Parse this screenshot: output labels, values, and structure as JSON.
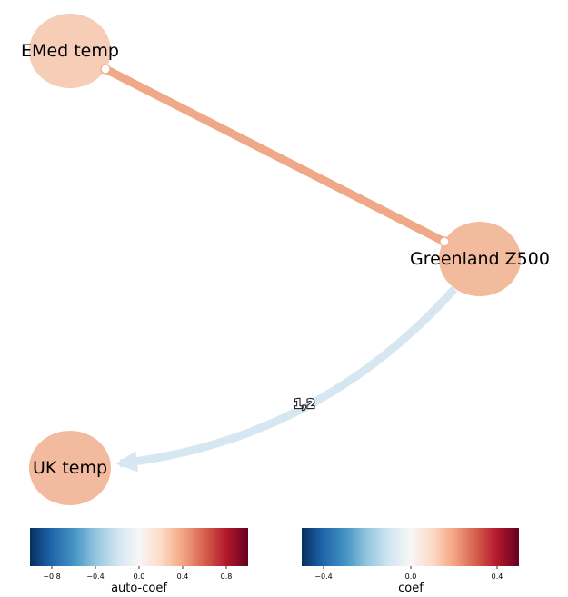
{
  "nodes": [
    {
      "id": "emed",
      "label": "EMed temp",
      "color": "#f6cdb6"
    },
    {
      "id": "greenland",
      "label": "Greenland Z500",
      "color": "#f3bb9d"
    },
    {
      "id": "uk",
      "label": "UK temp",
      "color": "#f2bba0"
    }
  ],
  "edges": [
    {
      "from": "emed",
      "to": "greenland",
      "color": "#f0a988",
      "type": "contemporaneous",
      "label": ""
    },
    {
      "from": "greenland",
      "to": "uk",
      "color": "#d7e7f2",
      "type": "lagged",
      "label": "1,2"
    }
  ],
  "colorbars": [
    {
      "id": "auto-coef",
      "title": "auto-coef",
      "range": [
        -1,
        1
      ],
      "ticks": [
        "−0.8",
        "−0.4",
        "0.0",
        "0.4",
        "0.8"
      ],
      "tick_values": [
        -0.8,
        -0.4,
        0.0,
        0.4,
        0.8
      ]
    },
    {
      "id": "coef",
      "title": "coef",
      "range": [
        -0.5,
        0.5
      ],
      "ticks": [
        "−0.4",
        "0.0",
        "0.4"
      ],
      "tick_values": [
        -0.4,
        0.0,
        0.4
      ]
    }
  ],
  "colormap": [
    "#053061",
    "#2166ac",
    "#4393c3",
    "#92c5de",
    "#d1e5f0",
    "#f7f7f7",
    "#fddbc7",
    "#f4a582",
    "#d6604d",
    "#b2182b",
    "#67001f"
  ]
}
